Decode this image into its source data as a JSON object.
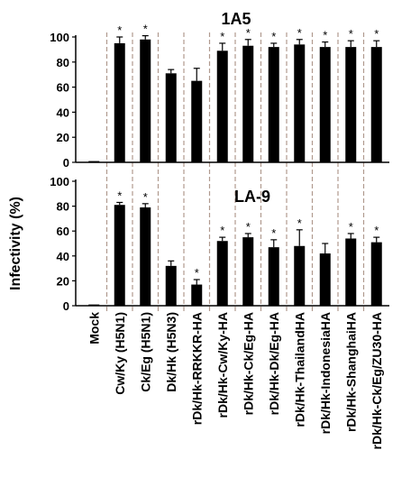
{
  "chart_data": [
    {
      "type": "bar",
      "title": "1A5",
      "ylabel": "Infectivity (%)",
      "ylim": [
        0,
        100
      ],
      "yticks": [
        0,
        20,
        40,
        60,
        80,
        100
      ],
      "grid": false,
      "categories": [
        "Mock",
        "Cw/Ky (H5N1)",
        "Ck/Eg (H5N1)",
        "Dk/Hk (H5N3)",
        "rDk/Hk-RRKKR-HA",
        "rDk/Hk-Cw/Ky-HA",
        "rDk/Hk-Ck/Eg-HA",
        "rDk/Hk-Dk/Eg-HA",
        "rDk/Hk-ThailandHA",
        "rDk/Hk-IndonesiaHA",
        "rDk/Hk-ShanghaiHA",
        "rDk/Hk-Ck/Eg/ZU30-HA"
      ],
      "values": [
        1,
        95,
        98,
        71,
        65,
        89,
        93,
        92,
        94,
        92,
        92,
        92
      ],
      "errors": [
        0,
        5,
        3,
        3,
        10,
        6,
        5,
        3,
        4,
        4,
        5,
        5
      ],
      "significance": [
        "",
        "*",
        "*",
        "",
        "",
        "*",
        "*",
        "*",
        "*",
        "*",
        "*",
        "*"
      ]
    },
    {
      "type": "bar",
      "title": "LA-9",
      "ylabel": "Infectivity (%)",
      "ylim": [
        0,
        100
      ],
      "yticks": [
        0,
        20,
        40,
        60,
        80,
        100
      ],
      "grid": false,
      "categories": [
        "Mock",
        "Cw/Ky (H5N1)",
        "Ck/Eg (H5N1)",
        "Dk/Hk (H5N3)",
        "rDk/Hk-RRKKR-HA",
        "rDk/Hk-Cw/Ky-HA",
        "rDk/Hk-Ck/Eg-HA",
        "rDk/Hk-Dk/Eg-HA",
        "rDk/Hk-ThailandHA",
        "rDk/Hk-IndonesiaHA",
        "rDk/Hk-ShanghaiHA",
        "rDk/Hk-Ck/Eg/ZU30-HA"
      ],
      "values": [
        1,
        81,
        79,
        32,
        17,
        52,
        55,
        47,
        48,
        42,
        54,
        51
      ],
      "errors": [
        0,
        2,
        3,
        4,
        4,
        3,
        3,
        6,
        13,
        8,
        4,
        4
      ],
      "significance": [
        "",
        "*",
        "*",
        "",
        "*",
        "*",
        "*",
        "*",
        "*",
        "",
        "*",
        "*"
      ]
    }
  ],
  "shared_ylabel": "Infectivity (%)",
  "colors": {
    "bar": "#000000",
    "separator": "#b09a8e",
    "axis": "#000000"
  }
}
